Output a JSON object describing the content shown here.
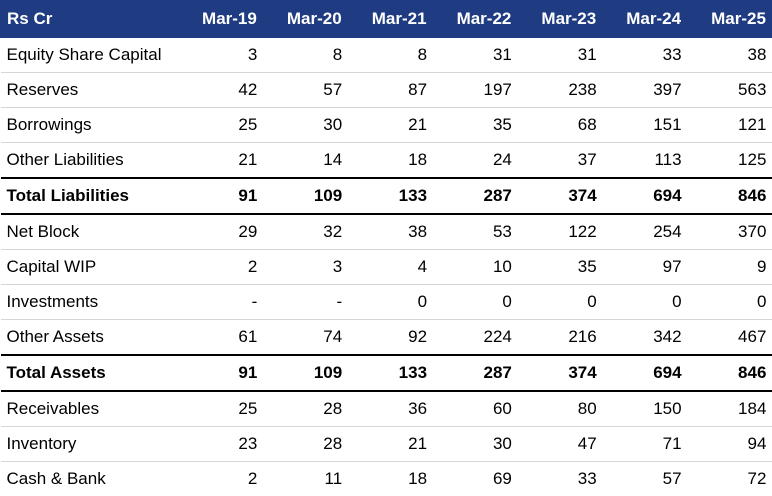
{
  "header": [
    "Rs Cr",
    "Mar-19",
    "Mar-20",
    "Mar-21",
    "Mar-22",
    "Mar-23",
    "Mar-24",
    "Mar-25"
  ],
  "rows": [
    {
      "label": "Equity Share Capital",
      "values": [
        "3",
        "8",
        "8",
        "31",
        "31",
        "33",
        "38"
      ],
      "bold": false
    },
    {
      "label": "Reserves",
      "values": [
        "42",
        "57",
        "87",
        "197",
        "238",
        "397",
        "563"
      ],
      "bold": false
    },
    {
      "label": "Borrowings",
      "values": [
        "25",
        "30",
        "21",
        "35",
        "68",
        "151",
        "121"
      ],
      "bold": false
    },
    {
      "label": "Other Liabilities",
      "values": [
        "21",
        "14",
        "18",
        "24",
        "37",
        "113",
        "125"
      ],
      "bold": false
    },
    {
      "label": "Total Liabilities",
      "values": [
        "91",
        "109",
        "133",
        "287",
        "374",
        "694",
        "846"
      ],
      "bold": true
    },
    {
      "label": "Net Block",
      "values": [
        "29",
        "32",
        "38",
        "53",
        "122",
        "254",
        "370"
      ],
      "bold": false
    },
    {
      "label": "Capital WIP",
      "values": [
        "2",
        "3",
        "4",
        "10",
        "35",
        "97",
        "9"
      ],
      "bold": false
    },
    {
      "label": "Investments",
      "values": [
        "-",
        "-",
        "0",
        "0",
        "0",
        "0",
        "0"
      ],
      "bold": false
    },
    {
      "label": "Other Assets",
      "values": [
        "61",
        "74",
        "92",
        "224",
        "216",
        "342",
        "467"
      ],
      "bold": false
    },
    {
      "label": "Total Assets",
      "values": [
        "91",
        "109",
        "133",
        "287",
        "374",
        "694",
        "846"
      ],
      "bold": true
    },
    {
      "label": "Receivables",
      "values": [
        "25",
        "28",
        "36",
        "60",
        "80",
        "150",
        "184"
      ],
      "bold": false
    },
    {
      "label": "Inventory",
      "values": [
        "23",
        "28",
        "21",
        "30",
        "47",
        "71",
        "94"
      ],
      "bold": false
    },
    {
      "label": "Cash & Bank",
      "values": [
        "2",
        "11",
        "18",
        "69",
        "33",
        "57",
        "72"
      ],
      "bold": false
    }
  ],
  "colors": {
    "header_bg": "#1f3b82",
    "header_text": "#ffffff"
  }
}
